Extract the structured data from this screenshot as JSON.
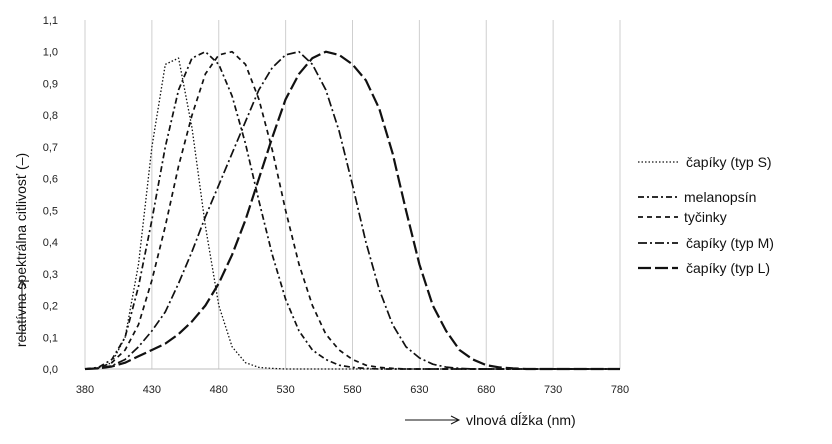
{
  "chart_data": {
    "type": "line",
    "xlabel": "vlnová dĺžka  (nm)",
    "ylabel": "relatívna spektrálna citlivosť  (–)",
    "xlim": [
      380,
      780
    ],
    "ylim": [
      0,
      1.1
    ],
    "x_ticks": [
      "380",
      "430",
      "480",
      "530",
      "580",
      "630",
      "680",
      "730",
      "780"
    ],
    "y_ticks": [
      "0,0",
      "0,1",
      "0,2",
      "0,3",
      "0,4",
      "0,5",
      "0,6",
      "0,7",
      "0,8",
      "0,9",
      "1,0",
      "1,1"
    ],
    "grid": "vertical",
    "legend_position": "right",
    "x": [
      380,
      390,
      400,
      410,
      420,
      430,
      440,
      450,
      460,
      470,
      480,
      490,
      500,
      510,
      520,
      530,
      540,
      550,
      560,
      570,
      580,
      590,
      600,
      610,
      620,
      630,
      640,
      650,
      660,
      670,
      680,
      690,
      700,
      710,
      720,
      730,
      740,
      750,
      760,
      770,
      780
    ],
    "series": [
      {
        "name": "čapíky  (typ S)",
        "dash": "1.5,2",
        "values": [
          0.0,
          0.003,
          0.02,
          0.1,
          0.33,
          0.7,
          0.96,
          0.98,
          0.76,
          0.45,
          0.2,
          0.07,
          0.02,
          0.005,
          0.002,
          0,
          0,
          0,
          0,
          0,
          0,
          0,
          0,
          0,
          0,
          0,
          0,
          0,
          0,
          0,
          0,
          0,
          0,
          0,
          0,
          0,
          0,
          0,
          0,
          0,
          0
        ]
      },
      {
        "name": "melanopsín",
        "dash": "6,3,2,3",
        "values": [
          0.0,
          0.005,
          0.03,
          0.1,
          0.26,
          0.47,
          0.7,
          0.88,
          0.98,
          1.0,
          0.96,
          0.86,
          0.71,
          0.53,
          0.36,
          0.22,
          0.12,
          0.06,
          0.03,
          0.012,
          0.005,
          0.002,
          0,
          0,
          0,
          0,
          0,
          0,
          0,
          0,
          0,
          0,
          0,
          0,
          0,
          0,
          0,
          0,
          0,
          0,
          0
        ]
      },
      {
        "name": "tyčinky",
        "dash": "5,4",
        "values": [
          0.0,
          0.003,
          0.02,
          0.06,
          0.14,
          0.28,
          0.45,
          0.64,
          0.8,
          0.93,
          0.99,
          1.0,
          0.96,
          0.85,
          0.69,
          0.5,
          0.33,
          0.2,
          0.11,
          0.06,
          0.03,
          0.012,
          0.005,
          0.002,
          0,
          0,
          0,
          0,
          0,
          0,
          0,
          0,
          0,
          0,
          0,
          0,
          0,
          0,
          0,
          0,
          0
        ]
      },
      {
        "name": "čapíky  (typ M)",
        "dash": "9,3,2,3",
        "values": [
          0.0,
          0.002,
          0.01,
          0.03,
          0.07,
          0.12,
          0.18,
          0.27,
          0.37,
          0.48,
          0.58,
          0.68,
          0.78,
          0.88,
          0.95,
          0.99,
          1.0,
          0.96,
          0.88,
          0.75,
          0.58,
          0.4,
          0.25,
          0.14,
          0.07,
          0.035,
          0.015,
          0.006,
          0.002,
          0,
          0,
          0,
          0,
          0,
          0,
          0,
          0,
          0,
          0,
          0,
          0
        ]
      },
      {
        "name": "čapíky  (typ L)",
        "dash": "13,4",
        "values": [
          0.0,
          0.002,
          0.008,
          0.02,
          0.04,
          0.06,
          0.08,
          0.11,
          0.15,
          0.2,
          0.27,
          0.36,
          0.47,
          0.6,
          0.73,
          0.85,
          0.93,
          0.98,
          1.0,
          0.99,
          0.96,
          0.91,
          0.82,
          0.68,
          0.5,
          0.33,
          0.2,
          0.12,
          0.06,
          0.03,
          0.012,
          0.005,
          0.002,
          0,
          0,
          0,
          0,
          0,
          0,
          0,
          0
        ]
      }
    ]
  }
}
